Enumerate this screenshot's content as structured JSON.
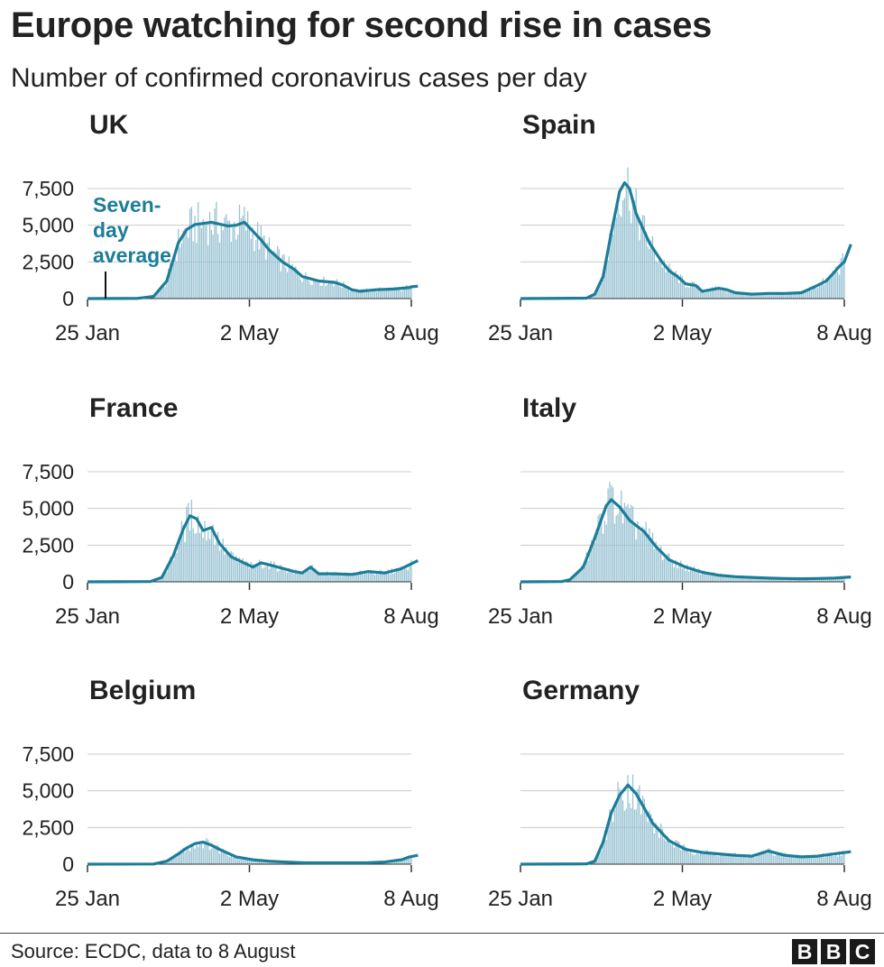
{
  "header": {
    "title": "Europe watching for second rise in cases",
    "subtitle": "Number of confirmed coronavirus cases per day"
  },
  "footer": {
    "source": "Source: ECDC, data to 8 August",
    "logo_letters": [
      "B",
      "B",
      "C"
    ]
  },
  "colors": {
    "line": "#1c7d99",
    "bars": "#9ac3d3",
    "grid": "#cccccc",
    "axis": "#333333",
    "text": "#222222"
  },
  "chart_data": [
    {
      "type": "bar+line",
      "title": "UK",
      "x_range": [
        "2020-01-25",
        "2020-08-08"
      ],
      "x_ticks": [
        "25 Jan",
        "2 May",
        "8 Aug"
      ],
      "y_ticks": [
        "0",
        "2,500",
        "5,000",
        "7,500"
      ],
      "ylim": [
        0,
        8000
      ],
      "annotation": [
        "Seven-",
        "day",
        "average"
      ],
      "seven_day_average": [
        [
          0,
          0
        ],
        [
          30,
          10
        ],
        [
          40,
          150
        ],
        [
          48,
          1200
        ],
        [
          55,
          3800
        ],
        [
          60,
          4700
        ],
        [
          65,
          5050
        ],
        [
          75,
          5200
        ],
        [
          85,
          4950
        ],
        [
          90,
          5000
        ],
        [
          95,
          5200
        ],
        [
          100,
          4600
        ],
        [
          105,
          4000
        ],
        [
          110,
          3300
        ],
        [
          118,
          2500
        ],
        [
          125,
          2000
        ],
        [
          130,
          1500
        ],
        [
          140,
          1200
        ],
        [
          150,
          1100
        ],
        [
          155,
          900
        ],
        [
          160,
          600
        ],
        [
          165,
          500
        ],
        [
          175,
          600
        ],
        [
          185,
          650
        ],
        [
          195,
          750
        ],
        [
          200,
          850
        ],
        [
          196,
          800
        ]
      ]
    },
    {
      "type": "bar+line",
      "title": "Spain",
      "x_range": [
        "2020-01-25",
        "2020-08-08"
      ],
      "x_ticks": [
        "25 Jan",
        "2 May",
        "8 Aug"
      ],
      "y_ticks": [
        "0",
        "2,500",
        "5,000",
        "7,500"
      ],
      "ylim": [
        0,
        8000
      ],
      "seven_day_average": [
        [
          0,
          0
        ],
        [
          40,
          30
        ],
        [
          45,
          300
        ],
        [
          50,
          1500
        ],
        [
          55,
          4500
        ],
        [
          60,
          7300
        ],
        [
          63,
          7900
        ],
        [
          66,
          7500
        ],
        [
          70,
          5800
        ],
        [
          78,
          3800
        ],
        [
          85,
          2600
        ],
        [
          90,
          1900
        ],
        [
          95,
          1500
        ],
        [
          100,
          1000
        ],
        [
          106,
          900
        ],
        [
          110,
          500
        ],
        [
          120,
          700
        ],
        [
          125,
          600
        ],
        [
          130,
          400
        ],
        [
          140,
          300
        ],
        [
          150,
          350
        ],
        [
          160,
          350
        ],
        [
          170,
          400
        ],
        [
          178,
          800
        ],
        [
          185,
          1200
        ],
        [
          190,
          1800
        ],
        [
          193,
          2200
        ],
        [
          196,
          2500
        ],
        [
          200,
          3700
        ]
      ]
    },
    {
      "type": "bar+line",
      "title": "France",
      "x_range": [
        "2020-01-25",
        "2020-08-08"
      ],
      "x_ticks": [
        "25 Jan",
        "2 May",
        "8 Aug"
      ],
      "y_ticks": [
        "0",
        "2,500",
        "5,000",
        "7,500"
      ],
      "ylim": [
        0,
        8000
      ],
      "seven_day_average": [
        [
          0,
          0
        ],
        [
          38,
          20
        ],
        [
          45,
          300
        ],
        [
          52,
          1800
        ],
        [
          58,
          3600
        ],
        [
          62,
          4500
        ],
        [
          66,
          4300
        ],
        [
          70,
          3500
        ],
        [
          75,
          3700
        ],
        [
          80,
          2600
        ],
        [
          87,
          1700
        ],
        [
          100,
          1000
        ],
        [
          105,
          1300
        ],
        [
          112,
          1100
        ],
        [
          125,
          700
        ],
        [
          130,
          600
        ],
        [
          135,
          1000
        ],
        [
          140,
          550
        ],
        [
          150,
          550
        ],
        [
          160,
          500
        ],
        [
          170,
          700
        ],
        [
          180,
          600
        ],
        [
          190,
          900
        ],
        [
          200,
          1450
        ]
      ]
    },
    {
      "type": "bar+line",
      "title": "Italy",
      "x_range": [
        "2020-01-25",
        "2020-08-08"
      ],
      "x_ticks": [
        "25 Jan",
        "2 May",
        "8 Aug"
      ],
      "y_ticks": [
        "0",
        "2,500",
        "5,000",
        "7,500"
      ],
      "ylim": [
        0,
        8000
      ],
      "seven_day_average": [
        [
          0,
          0
        ],
        [
          25,
          20
        ],
        [
          30,
          150
        ],
        [
          38,
          1000
        ],
        [
          45,
          3000
        ],
        [
          52,
          5200
        ],
        [
          55,
          5600
        ],
        [
          60,
          5100
        ],
        [
          66,
          4200
        ],
        [
          75,
          3400
        ],
        [
          82,
          2400
        ],
        [
          90,
          1500
        ],
        [
          100,
          1000
        ],
        [
          110,
          650
        ],
        [
          120,
          450
        ],
        [
          130,
          350
        ],
        [
          140,
          300
        ],
        [
          150,
          250
        ],
        [
          160,
          230
        ],
        [
          170,
          210
        ],
        [
          180,
          230
        ],
        [
          190,
          260
        ],
        [
          200,
          330
        ]
      ]
    },
    {
      "type": "bar+line",
      "title": "Belgium",
      "x_range": [
        "2020-01-25",
        "2020-08-08"
      ],
      "x_ticks": [
        "25 Jan",
        "2 May",
        "8 Aug"
      ],
      "y_ticks": [
        "0",
        "2,500",
        "5,000",
        "7,500"
      ],
      "ylim": [
        0,
        8000
      ],
      "seven_day_average": [
        [
          0,
          0
        ],
        [
          40,
          10
        ],
        [
          48,
          200
        ],
        [
          55,
          700
        ],
        [
          60,
          1100
        ],
        [
          65,
          1400
        ],
        [
          70,
          1500
        ],
        [
          75,
          1300
        ],
        [
          80,
          1000
        ],
        [
          90,
          500
        ],
        [
          100,
          300
        ],
        [
          110,
          200
        ],
        [
          120,
          150
        ],
        [
          130,
          100
        ],
        [
          150,
          90
        ],
        [
          170,
          100
        ],
        [
          180,
          150
        ],
        [
          190,
          300
        ],
        [
          195,
          500
        ],
        [
          200,
          600
        ]
      ]
    },
    {
      "type": "bar+line",
      "title": "Germany",
      "x_range": [
        "2020-01-25",
        "2020-08-08"
      ],
      "x_ticks": [
        "25 Jan",
        "2 May",
        "8 Aug"
      ],
      "y_ticks": [
        "0",
        "2,500",
        "5,000",
        "7,500"
      ],
      "ylim": [
        0,
        8000
      ],
      "seven_day_average": [
        [
          0,
          0
        ],
        [
          40,
          20
        ],
        [
          45,
          200
        ],
        [
          50,
          1500
        ],
        [
          55,
          3500
        ],
        [
          60,
          4700
        ],
        [
          65,
          5400
        ],
        [
          70,
          4800
        ],
        [
          75,
          3800
        ],
        [
          80,
          2800
        ],
        [
          90,
          1600
        ],
        [
          100,
          1000
        ],
        [
          110,
          800
        ],
        [
          120,
          700
        ],
        [
          130,
          600
        ],
        [
          140,
          550
        ],
        [
          150,
          900
        ],
        [
          160,
          600
        ],
        [
          170,
          500
        ],
        [
          180,
          550
        ],
        [
          190,
          700
        ],
        [
          200,
          850
        ]
      ]
    }
  ]
}
